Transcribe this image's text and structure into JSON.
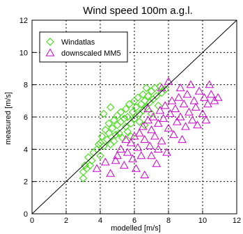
{
  "chart_data": {
    "type": "scatter",
    "title": "Wind speed 100m a.g.l.",
    "xlabel": "modelled [m/s]",
    "ylabel": "measured [m/s]",
    "xlim": [
      0,
      12
    ],
    "ylim": [
      0,
      12
    ],
    "xticks": [
      "0",
      "2",
      "4",
      "6",
      "8",
      "10",
      "12"
    ],
    "yticks": [
      "0",
      "2",
      "4",
      "6",
      "8",
      "10",
      "12"
    ],
    "grid": true,
    "legend_position": "top-left",
    "reference_line": "1:1",
    "series": [
      {
        "name": "Windatlas",
        "marker": "diamond",
        "color": "#33dd00",
        "points": [
          [
            3.0,
            2.2
          ],
          [
            3.0,
            2.6
          ],
          [
            3.1,
            3.0
          ],
          [
            3.2,
            2.8
          ],
          [
            3.3,
            3.5
          ],
          [
            3.5,
            3.3
          ],
          [
            3.6,
            3.8
          ],
          [
            3.8,
            4.0
          ],
          [
            4.0,
            3.6
          ],
          [
            4.0,
            4.4
          ],
          [
            4.1,
            4.8
          ],
          [
            4.2,
            4.2
          ],
          [
            4.3,
            5.2
          ],
          [
            4.4,
            4.6
          ],
          [
            4.5,
            5.0
          ],
          [
            4.5,
            5.6
          ],
          [
            4.6,
            4.3
          ],
          [
            4.7,
            5.3
          ],
          [
            4.8,
            5.8
          ],
          [
            4.9,
            4.9
          ],
          [
            5.0,
            5.5
          ],
          [
            5.0,
            6.1
          ],
          [
            5.1,
            5.0
          ],
          [
            5.2,
            5.7
          ],
          [
            5.2,
            6.3
          ],
          [
            5.3,
            4.7
          ],
          [
            5.4,
            5.9
          ],
          [
            5.5,
            6.5
          ],
          [
            5.5,
            5.4
          ],
          [
            5.6,
            6.0
          ],
          [
            5.7,
            6.8
          ],
          [
            5.8,
            5.6
          ],
          [
            5.9,
            6.3
          ],
          [
            6.0,
            7.0
          ],
          [
            6.0,
            5.9
          ],
          [
            6.1,
            6.6
          ],
          [
            6.2,
            7.2
          ],
          [
            6.3,
            6.2
          ],
          [
            6.4,
            6.8
          ],
          [
            6.5,
            7.4
          ],
          [
            6.5,
            6.4
          ],
          [
            6.6,
            7.0
          ],
          [
            6.7,
            6.6
          ],
          [
            6.8,
            7.3
          ],
          [
            6.9,
            6.9
          ],
          [
            7.0,
            7.6
          ],
          [
            7.1,
            7.1
          ],
          [
            7.2,
            7.8
          ],
          [
            7.3,
            7.3
          ],
          [
            7.5,
            7.9
          ],
          [
            7.6,
            7.5
          ],
          [
            7.8,
            7.7
          ],
          [
            4.2,
            6.2
          ],
          [
            4.6,
            6.6
          ],
          [
            5.8,
            4.8
          ],
          [
            6.6,
            5.5
          ],
          [
            7.4,
            6.7
          ],
          [
            3.4,
            3.0
          ],
          [
            3.9,
            4.3
          ],
          [
            4.8,
            4.5
          ],
          [
            5.6,
            5.1
          ],
          [
            6.3,
            5.7
          ],
          [
            7.0,
            6.2
          ],
          [
            6.7,
            7.8
          ]
        ]
      },
      {
        "name": "downscaled MM5",
        "marker": "triangle",
        "color": "#cc00cc",
        "points": [
          [
            3.8,
            2.8
          ],
          [
            4.3,
            3.2
          ],
          [
            4.6,
            2.5
          ],
          [
            5.0,
            3.6
          ],
          [
            5.2,
            4.0
          ],
          [
            5.4,
            3.0
          ],
          [
            5.6,
            3.8
          ],
          [
            5.8,
            4.4
          ],
          [
            5.9,
            3.4
          ],
          [
            6.0,
            4.8
          ],
          [
            6.2,
            4.1
          ],
          [
            6.3,
            5.0
          ],
          [
            6.4,
            3.6
          ],
          [
            6.5,
            5.4
          ],
          [
            6.6,
            4.6
          ],
          [
            6.8,
            5.8
          ],
          [
            6.9,
            4.2
          ],
          [
            7.0,
            5.2
          ],
          [
            7.1,
            6.0
          ],
          [
            7.2,
            4.8
          ],
          [
            7.3,
            3.1
          ],
          [
            7.4,
            5.6
          ],
          [
            7.5,
            6.4
          ],
          [
            7.6,
            4.5
          ],
          [
            7.7,
            5.9
          ],
          [
            7.8,
            6.7
          ],
          [
            7.9,
            3.8
          ],
          [
            8.0,
            5.3
          ],
          [
            8.1,
            6.2
          ],
          [
            8.2,
            7.0
          ],
          [
            8.3,
            4.9
          ],
          [
            8.4,
            6.5
          ],
          [
            8.5,
            5.7
          ],
          [
            8.6,
            7.2
          ],
          [
            8.7,
            6.0
          ],
          [
            8.8,
            4.6
          ],
          [
            8.9,
            6.8
          ],
          [
            9.0,
            5.4
          ],
          [
            9.1,
            7.4
          ],
          [
            9.2,
            6.3
          ],
          [
            9.4,
            5.8
          ],
          [
            9.5,
            7.0
          ],
          [
            9.6,
            6.6
          ],
          [
            9.8,
            7.6
          ],
          [
            10.0,
            6.2
          ],
          [
            10.1,
            7.2
          ],
          [
            10.3,
            6.8
          ],
          [
            10.5,
            7.4
          ],
          [
            10.7,
            7.0
          ],
          [
            10.9,
            7.2
          ],
          [
            8.0,
            8.2
          ],
          [
            7.6,
            7.8
          ],
          [
            6.6,
            2.4
          ],
          [
            7.0,
            3.6
          ],
          [
            9.7,
            5.5
          ],
          [
            10.2,
            5.8
          ],
          [
            7.4,
            4.0
          ],
          [
            8.7,
            7.8
          ],
          [
            6.1,
            2.8
          ],
          [
            5.5,
            4.6
          ],
          [
            6.8,
            6.5
          ],
          [
            9.3,
            8.0
          ],
          [
            10.4,
            8.0
          ],
          [
            4.9,
            3.3
          ]
        ]
      }
    ]
  }
}
